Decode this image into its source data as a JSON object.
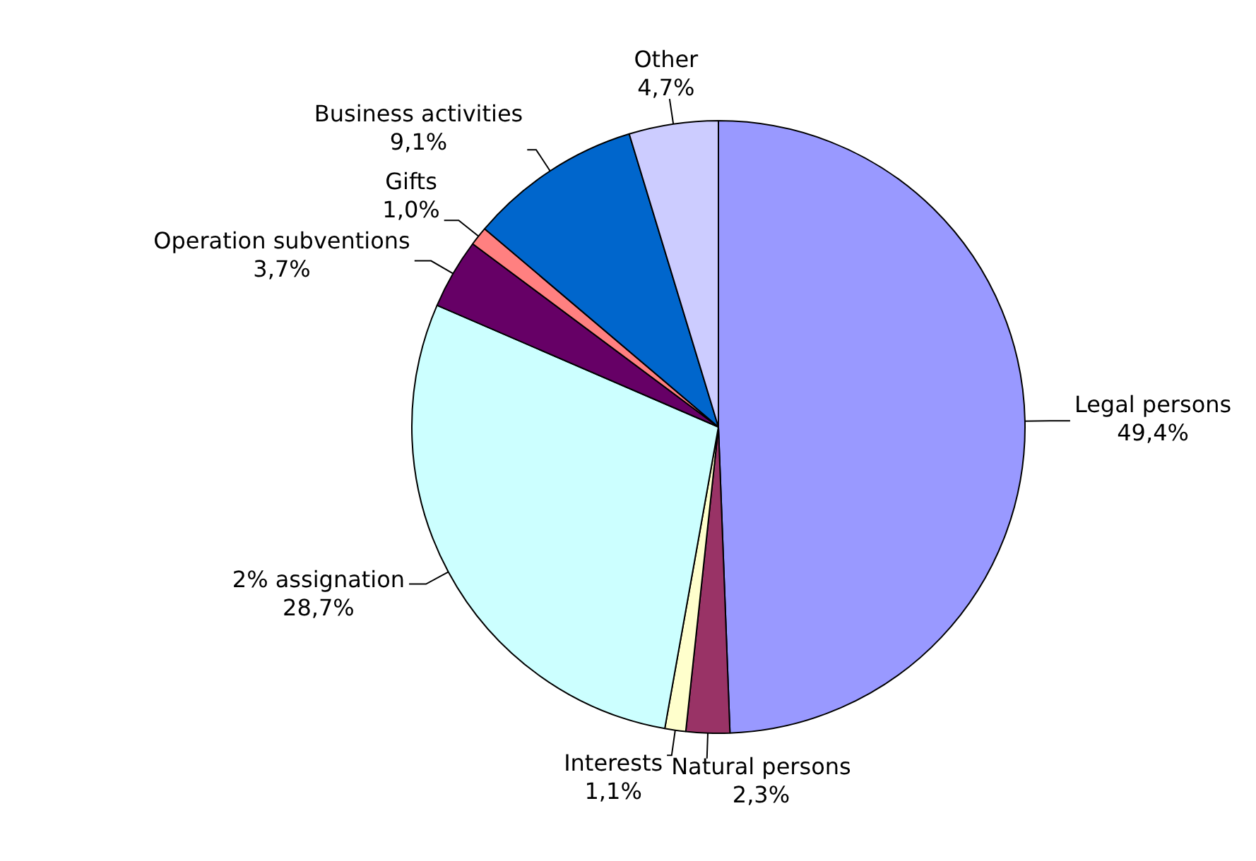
{
  "chart_data": {
    "type": "pie",
    "categories": [
      "Legal persons",
      "Natural persons",
      "Interests",
      "2% assignation",
      "Operation subventions",
      "Gifts",
      "Business activities",
      "Other"
    ],
    "values": [
      49.4,
      2.3,
      1.1,
      28.7,
      3.7,
      1.0,
      9.1,
      4.7
    ],
    "value_labels": [
      "49,4%",
      "2,3%",
      "1,1%",
      "28,7%",
      "3,7%",
      "1,0%",
      "9,1%",
      "4,7%"
    ],
    "colors": [
      "#9999ff",
      "#993366",
      "#ffffcc",
      "#ccffff",
      "#660066",
      "#ff8080",
      "#0066cc",
      "#ccccff"
    ],
    "legend": false
  }
}
